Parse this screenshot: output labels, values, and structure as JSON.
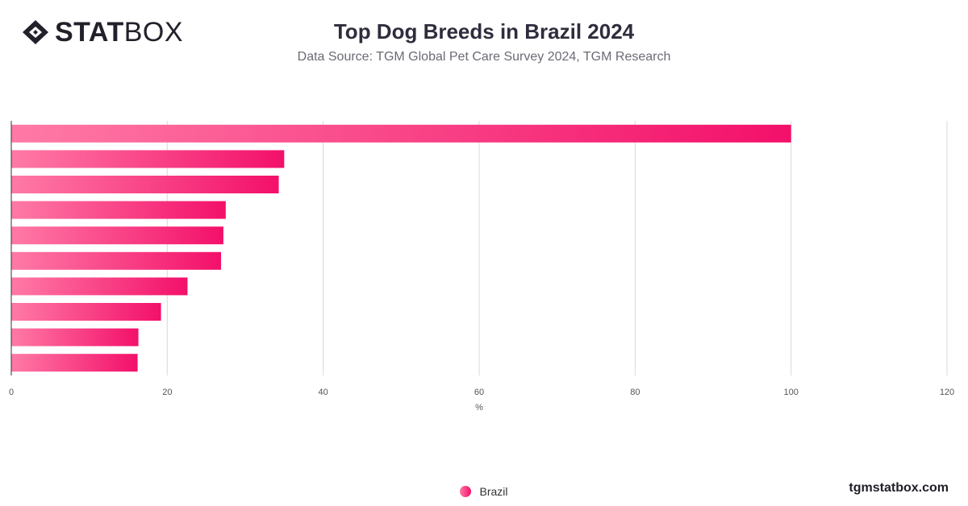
{
  "brand": {
    "strong": "STAT",
    "light": "BOX"
  },
  "header": {
    "title": "Top Dog Breeds in Brazil 2024",
    "subtitle": "Data Source: TGM Global Pet Care Survey 2024, TGM Research"
  },
  "legend": {
    "label": "Brazil"
  },
  "footer": {
    "site": "tgmstatbox.com"
  },
  "colors": {
    "bar_start": "#ff7aa6",
    "bar_end": "#f3106a",
    "grid": "#d9d9d9",
    "axis_text": "#555555"
  },
  "chart_data": {
    "type": "bar",
    "orientation": "horizontal",
    "title": "Top Dog Breeds in Brazil 2024",
    "subtitle": "Data Source: TGM Global Pet Care Survey 2024, TGM Research",
    "xlabel": "%",
    "ylabel": "",
    "xlim": [
      0,
      120
    ],
    "xticks": [
      0,
      20,
      40,
      60,
      80,
      100,
      120
    ],
    "grid": true,
    "legend_position": "bottom-center",
    "series": [
      {
        "name": "Brazil",
        "values": [
          100,
          35,
          34.3,
          27.5,
          27.2,
          26.9,
          22.6,
          19.2,
          16.3,
          16.2
        ]
      }
    ]
  }
}
